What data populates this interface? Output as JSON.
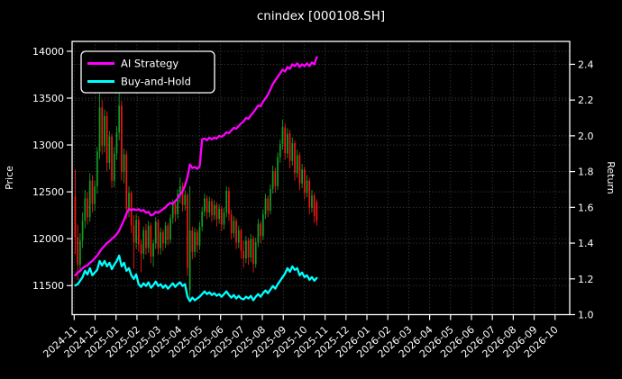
{
  "figure": {
    "title": "cnindex [000108.SH]",
    "background": "#000000",
    "text_color": "#ffffff",
    "spine_color": "#ffffff"
  },
  "legend": {
    "position": "upper-left",
    "entries": [
      {
        "label": "AI Strategy",
        "color": "#ff00ff"
      },
      {
        "label": "Buy-and-Hold",
        "color": "#00ffff"
      }
    ]
  },
  "chart_data": {
    "type": "candlestick_with_lines",
    "title": "cnindex [000108.SH]",
    "background": "#000000",
    "grid": {
      "color": "#4a4a4a",
      "style": "dotted"
    },
    "x_axis": {
      "unit": "month",
      "xlim_months": [
        -0.1,
        23.7
      ],
      "tick_labels": [
        "2024-11",
        "2024-12",
        "2025-01",
        "2025-02",
        "2025-03",
        "2025-04",
        "2025-05",
        "2025-06",
        "2025-07",
        "2025-08",
        "2025-09",
        "2025-10",
        "2025-11",
        "2025-12",
        "2026-01",
        "2026-02",
        "2026-03",
        "2026-04",
        "2026-05",
        "2026-06",
        "2026-07",
        "2026-08",
        "2026-09",
        "2026-10"
      ]
    },
    "price_axis": {
      "label": "Price",
      "ticks": [
        11500,
        12000,
        12500,
        13000,
        13500,
        14000
      ],
      "ylim": [
        11190,
        14105
      ]
    },
    "return_axis": {
      "label": "Return",
      "ticks": [
        1.0,
        1.2,
        1.4,
        1.6,
        1.8,
        2.0,
        2.2,
        2.4
      ],
      "ylim": [
        1.0,
        2.528
      ]
    },
    "candles": {
      "start_month": 0.05,
      "month_step": 0.11667,
      "up_color": "#0fa024",
      "down_color": "#f41414",
      "ohlc": [
        [
          12450,
          12740,
          11830,
          12020
        ],
        [
          12020,
          12150,
          11560,
          11720
        ],
        [
          11720,
          12060,
          11640,
          11980
        ],
        [
          11980,
          12280,
          11900,
          12190
        ],
        [
          12190,
          12520,
          12110,
          12430
        ],
        [
          12430,
          12500,
          12150,
          12230
        ],
        [
          12230,
          12700,
          12180,
          12620
        ],
        [
          12620,
          12680,
          12280,
          12370
        ],
        [
          12370,
          12620,
          12300,
          12560
        ],
        [
          12560,
          12980,
          12480,
          12930
        ],
        [
          12930,
          13650,
          12850,
          13400
        ],
        [
          13400,
          13480,
          12900,
          12990
        ],
        [
          12990,
          13380,
          12920,
          13310
        ],
        [
          13310,
          13360,
          12720,
          12810
        ],
        [
          12810,
          13150,
          12740,
          13090
        ],
        [
          13090,
          13120,
          12540,
          12620
        ],
        [
          12620,
          12980,
          12550,
          12910
        ],
        [
          12910,
          13200,
          12840,
          13130
        ],
        [
          13130,
          13560,
          13050,
          13420
        ],
        [
          13420,
          13470,
          12620,
          12710
        ],
        [
          12710,
          12960,
          12590,
          12900
        ],
        [
          12900,
          12940,
          12210,
          12320
        ],
        [
          12320,
          12560,
          12230,
          12490
        ],
        [
          12490,
          12510,
          12060,
          12140
        ],
        [
          12140,
          12250,
          11680,
          11960
        ],
        [
          11960,
          12260,
          11890,
          12200
        ],
        [
          12200,
          12240,
          11860,
          11940
        ],
        [
          11940,
          11990,
          11640,
          11840
        ],
        [
          11840,
          12130,
          11780,
          12090
        ],
        [
          12090,
          12160,
          11830,
          11900
        ],
        [
          11900,
          12190,
          11850,
          12140
        ],
        [
          12140,
          12170,
          11740,
          11810
        ],
        [
          11810,
          11990,
          11700,
          11950
        ],
        [
          11950,
          12230,
          11890,
          12180
        ],
        [
          12180,
          12210,
          11830,
          11900
        ],
        [
          11900,
          12120,
          11830,
          12070
        ],
        [
          12070,
          12100,
          11870,
          11950
        ],
        [
          11950,
          12180,
          11900,
          12140
        ],
        [
          12140,
          12170,
          11930,
          11990
        ],
        [
          11990,
          12260,
          11950,
          12220
        ],
        [
          12220,
          12420,
          12160,
          12370
        ],
        [
          12370,
          12400,
          12180,
          12260
        ],
        [
          12260,
          12530,
          12210,
          12480
        ],
        [
          12480,
          12650,
          12380,
          12560
        ],
        [
          12560,
          12600,
          12290,
          12360
        ],
        [
          12360,
          12520,
          12300,
          12470
        ],
        [
          12470,
          12490,
          11600,
          11690
        ],
        [
          11450,
          12560,
          11370,
          12090
        ],
        [
          12090,
          12130,
          11780,
          11860
        ],
        [
          11860,
          12120,
          11800,
          12070
        ],
        [
          12070,
          12100,
          11850,
          11930
        ],
        [
          11930,
          12180,
          11880,
          12130
        ],
        [
          12130,
          12340,
          12080,
          12290
        ],
        [
          12290,
          12480,
          12240,
          12430
        ],
        [
          12430,
          12460,
          12210,
          12280
        ],
        [
          12280,
          12450,
          12230,
          12400
        ],
        [
          12400,
          12430,
          12180,
          12250
        ],
        [
          12250,
          12410,
          12200,
          12360
        ],
        [
          12360,
          12390,
          12130,
          12210
        ],
        [
          12210,
          12370,
          12160,
          12320
        ],
        [
          12320,
          12350,
          12080,
          12150
        ],
        [
          12150,
          12330,
          12100,
          12280
        ],
        [
          12280,
          12560,
          12230,
          12510
        ],
        [
          12510,
          12550,
          12190,
          12260
        ],
        [
          12260,
          12310,
          11990,
          12060
        ],
        [
          12060,
          12240,
          12010,
          12190
        ],
        [
          12190,
          12220,
          11890,
          11960
        ],
        [
          11960,
          12140,
          11900,
          12090
        ],
        [
          12090,
          12110,
          11790,
          11870
        ],
        [
          11870,
          11980,
          11690,
          11790
        ],
        [
          11790,
          12030,
          11740,
          11980
        ],
        [
          11980,
          12010,
          11720,
          11800
        ],
        [
          11800,
          12050,
          11750,
          12000
        ],
        [
          12000,
          12030,
          11640,
          11730
        ],
        [
          11730,
          12010,
          11690,
          11960
        ],
        [
          11960,
          12210,
          11910,
          12160
        ],
        [
          12160,
          12190,
          11950,
          12030
        ],
        [
          12030,
          12310,
          11990,
          12260
        ],
        [
          12260,
          12480,
          12210,
          12430
        ],
        [
          12430,
          12460,
          12230,
          12300
        ],
        [
          12300,
          12580,
          12260,
          12530
        ],
        [
          12530,
          12780,
          12480,
          12720
        ],
        [
          12720,
          12760,
          12490,
          12560
        ],
        [
          12560,
          12920,
          12520,
          12870
        ],
        [
          12870,
          13060,
          12810,
          13010
        ],
        [
          13010,
          13270,
          12950,
          13190
        ],
        [
          13190,
          13230,
          12840,
          12910
        ],
        [
          12910,
          13180,
          12860,
          13120
        ],
        [
          13120,
          13160,
          12750,
          12830
        ],
        [
          12830,
          13080,
          12780,
          13020
        ],
        [
          13020,
          13050,
          12620,
          12700
        ],
        [
          12700,
          12950,
          12650,
          12890
        ],
        [
          12890,
          12920,
          12520,
          12590
        ],
        [
          12590,
          12800,
          12540,
          12740
        ],
        [
          12740,
          12770,
          12420,
          12490
        ],
        [
          12490,
          12680,
          12440,
          12620
        ],
        [
          12620,
          12650,
          12260,
          12330
        ],
        [
          12330,
          12520,
          12280,
          12460
        ],
        [
          12460,
          12490,
          12170,
          12240
        ],
        [
          12390,
          12420,
          12140,
          12190
        ]
      ]
    },
    "series": [
      {
        "name": "AI Strategy",
        "axis": "return",
        "color": "#ff00ff",
        "linewidth": 2.3,
        "start_month": 0.05,
        "month_step": 0.11667,
        "values": [
          1.22,
          1.235,
          1.245,
          1.26,
          1.27,
          1.275,
          1.29,
          1.3,
          1.315,
          1.33,
          1.35,
          1.37,
          1.385,
          1.4,
          1.41,
          1.425,
          1.435,
          1.45,
          1.47,
          1.5,
          1.53,
          1.565,
          1.59,
          1.585,
          1.59,
          1.585,
          1.59,
          1.58,
          1.585,
          1.57,
          1.575,
          1.555,
          1.56,
          1.575,
          1.57,
          1.58,
          1.59,
          1.6,
          1.615,
          1.625,
          1.62,
          1.635,
          1.65,
          1.67,
          1.69,
          1.72,
          1.77,
          1.84,
          1.82,
          1.825,
          1.815,
          1.83,
          1.98,
          1.985,
          1.975,
          1.99,
          1.98,
          1.99,
          1.985,
          2.0,
          1.995,
          2.005,
          2.02,
          2.015,
          2.03,
          2.045,
          2.04,
          2.055,
          2.07,
          2.08,
          2.1,
          2.095,
          2.115,
          2.13,
          2.15,
          2.17,
          2.165,
          2.19,
          2.21,
          2.23,
          2.26,
          2.29,
          2.31,
          2.33,
          2.35,
          2.37,
          2.36,
          2.385,
          2.375,
          2.4,
          2.39,
          2.405,
          2.385,
          2.4,
          2.39,
          2.405,
          2.39,
          2.41,
          2.4,
          2.44
        ]
      },
      {
        "name": "Buy-and-Hold",
        "axis": "return",
        "color": "#00ffff",
        "linewidth": 2.3,
        "start_month": 0.05,
        "month_step": 0.11667,
        "values": [
          1.163,
          1.17,
          1.19,
          1.21,
          1.245,
          1.225,
          1.26,
          1.22,
          1.235,
          1.25,
          1.3,
          1.275,
          1.3,
          1.27,
          1.29,
          1.255,
          1.28,
          1.3,
          1.33,
          1.27,
          1.29,
          1.245,
          1.26,
          1.22,
          1.2,
          1.225,
          1.17,
          1.155,
          1.175,
          1.16,
          1.18,
          1.15,
          1.165,
          1.185,
          1.16,
          1.17,
          1.15,
          1.165,
          1.145,
          1.16,
          1.175,
          1.155,
          1.17,
          1.18,
          1.16,
          1.17,
          1.1,
          1.075,
          1.095,
          1.08,
          1.09,
          1.1,
          1.115,
          1.13,
          1.115,
          1.125,
          1.11,
          1.12,
          1.105,
          1.115,
          1.1,
          1.115,
          1.13,
          1.11,
          1.095,
          1.11,
          1.09,
          1.105,
          1.09,
          1.085,
          1.1,
          1.09,
          1.105,
          1.08,
          1.1,
          1.115,
          1.1,
          1.12,
          1.135,
          1.12,
          1.14,
          1.16,
          1.145,
          1.17,
          1.19,
          1.21,
          1.23,
          1.26,
          1.24,
          1.27,
          1.25,
          1.26,
          1.22,
          1.235,
          1.21,
          1.22,
          1.195,
          1.21,
          1.19,
          1.205
        ]
      }
    ]
  }
}
